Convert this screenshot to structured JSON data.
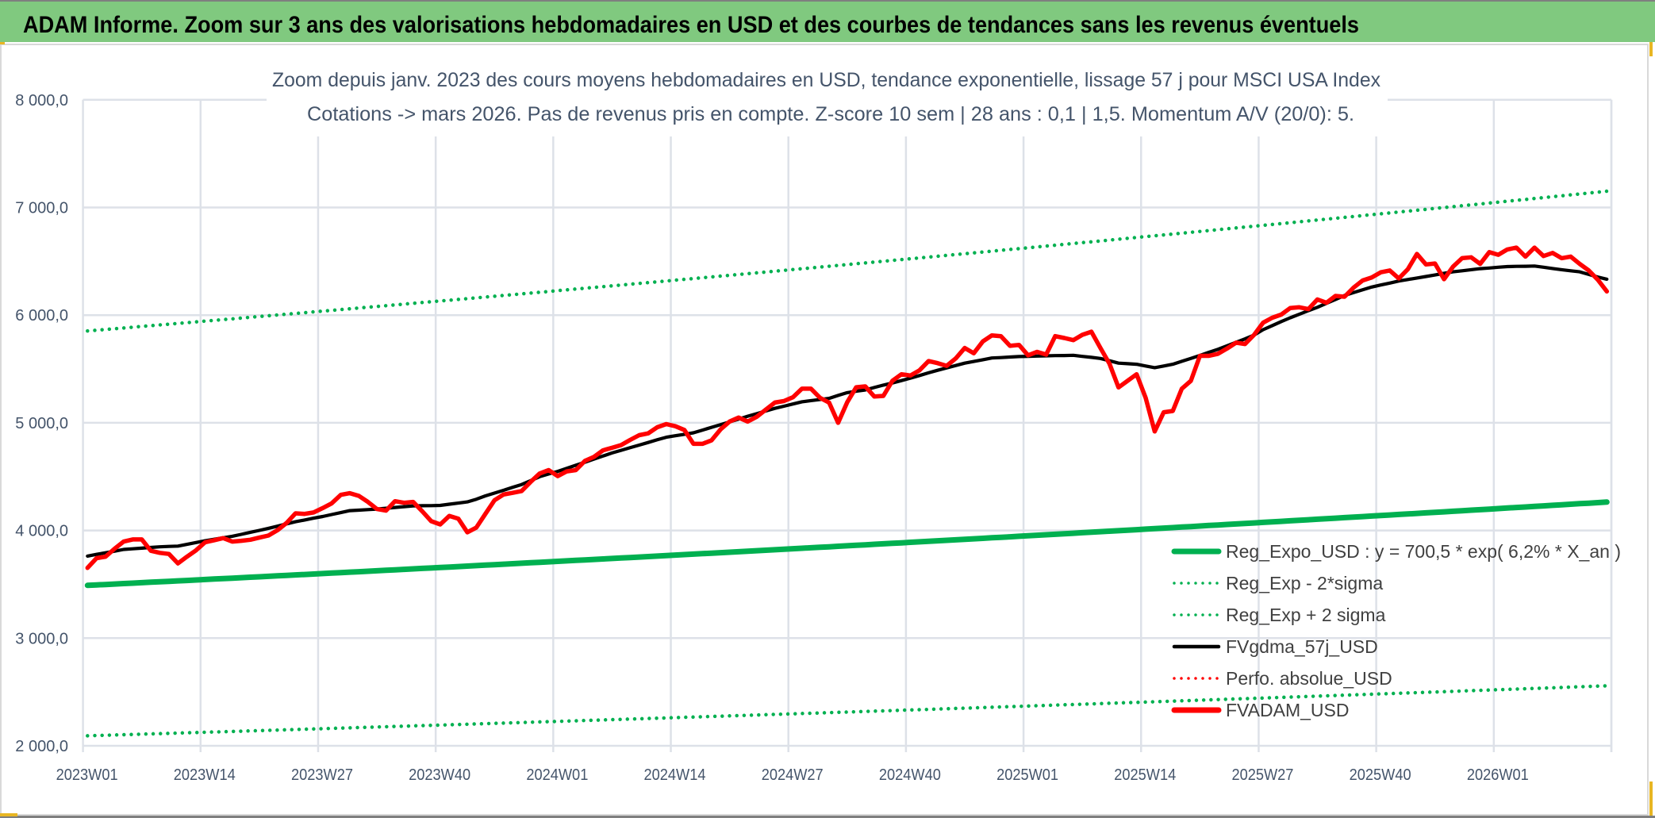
{
  "header": {
    "title": "ADAM Informe. Zoom sur 3 ans des valorisations hebdomadaires en USD et des courbes de tendances sans les revenus éventuels",
    "bar_color": "#80c97f"
  },
  "chart_data": {
    "type": "line",
    "title_line1": "Zoom depuis janv. 2023 des cours moyens hebdomadaires en USD, tendance exponentielle, lissage 57 j pour MSCI USA Index",
    "title_line2": "Cotations -> mars 2026. Pas de revenus pris en compte. Z-score 10 sem | 28 ans : 0,1 | 1,5. Momentum A/V (20/0): 5.",
    "xlabel": "",
    "ylabel": "",
    "ylim": [
      2000,
      8000
    ],
    "y_ticks": [
      "2 000,0",
      "3 000,0",
      "4 000,0",
      "5 000,0",
      "6 000,0",
      "7 000,0",
      "8 000,0"
    ],
    "y_tick_values": [
      2000,
      3000,
      4000,
      5000,
      6000,
      7000,
      8000
    ],
    "x_first_week": "2023W01",
    "x_count": 169,
    "x_tick_every": 13,
    "x_ticks": [
      "2023W01",
      "2023W14",
      "2023W27",
      "2023W40",
      "2024W01",
      "2024W14",
      "2024W27",
      "2024W40",
      "2025W01",
      "2025W14",
      "2025W27",
      "2025W40",
      "2026W01"
    ],
    "grid": true,
    "legend_position": "bottom-right",
    "legend": [
      {
        "label": "Reg_Expo_USD : y = 700,5 * exp( 6,2% *  X_an )",
        "color": "#00b050",
        "style": "solid-thick"
      },
      {
        "label": "Reg_Exp - 2*sigma",
        "color": "#00b050",
        "style": "dotted"
      },
      {
        "label": "Reg_Exp + 2 sigma",
        "color": "#00b050",
        "style": "dotted"
      },
      {
        "label": "FVgdma_57j_USD",
        "color": "#000000",
        "style": "solid"
      },
      {
        "label": "Perfo. absolue_USD",
        "color": "#ff0000",
        "style": "dotted"
      },
      {
        "label": "FVADAM_USD",
        "color": "#ff0000",
        "style": "solid-thick"
      }
    ],
    "trend_series": [
      {
        "name": "Reg_Expo_USD",
        "start": 3490,
        "annual_rate": 0.062,
        "color": "#00b050",
        "style": "solid-thick"
      },
      {
        "name": "Reg_Exp - 2*sigma",
        "start": 2093,
        "annual_rate": 0.062,
        "color": "#00b050",
        "style": "dotted"
      },
      {
        "name": "Reg_Exp + 2 sigma",
        "start": 5853,
        "annual_rate": 0.062,
        "color": "#00b050",
        "style": "dotted"
      }
    ],
    "series": [
      {
        "name": "FVgdma_57j_USD",
        "color": "#000000",
        "values": [
          3762,
          3778,
          3793,
          3808,
          3824,
          3830,
          3836,
          3842,
          3848,
          3852,
          3855,
          3871,
          3888,
          3904,
          3918,
          3932,
          3946,
          3964,
          3983,
          4001,
          4020,
          4040,
          4061,
          4081,
          4097,
          4114,
          4130,
          4148,
          4166,
          4184,
          4189,
          4194,
          4199,
          4206,
          4214,
          4221,
          4228,
          4230,
          4231,
          4233,
          4244,
          4254,
          4265,
          4290,
          4321,
          4347,
          4373,
          4400,
          4427,
          4463,
          4500,
          4525,
          4549,
          4577,
          4606,
          4634,
          4663,
          4691,
          4720,
          4744,
          4769,
          4793,
          4817,
          4842,
          4866,
          4880,
          4893,
          4907,
          4932,
          4958,
          4983,
          5009,
          5035,
          5061,
          5085,
          5110,
          5134,
          5154,
          5175,
          5195,
          5206,
          5216,
          5227,
          5254,
          5280,
          5293,
          5305,
          5328,
          5350,
          5370,
          5392,
          5415,
          5439,
          5464,
          5488,
          5510,
          5532,
          5554,
          5570,
          5586,
          5602,
          5606,
          5611,
          5615,
          5617,
          5620,
          5622,
          5624,
          5625,
          5627,
          5617,
          5608,
          5598,
          5576,
          5554,
          5549,
          5544,
          5528,
          5512,
          5528,
          5544,
          5571,
          5598,
          5626,
          5655,
          5683,
          5715,
          5748,
          5780,
          5815,
          5865,
          5903,
          5940,
          5976,
          6008,
          6041,
          6073,
          6110,
          6146,
          6183,
          6209,
          6235,
          6261,
          6280,
          6298,
          6317,
          6331,
          6345,
          6359,
          6373,
          6388,
          6402,
          6412,
          6422,
          6432,
          6438,
          6445,
          6451,
          6453,
          6454,
          6456,
          6445,
          6433,
          6422,
          6412,
          6402,
          6378,
          6354,
          6334
        ]
      },
      {
        "name": "FVADAM_USD",
        "color": "#ff0000",
        "values": [
          3652,
          3743,
          3757,
          3831,
          3897,
          3917,
          3917,
          3811,
          3792,
          3782,
          3694,
          3757,
          3816,
          3890,
          3909,
          3929,
          3897,
          3904,
          3914,
          3934,
          3953,
          4002,
          4069,
          4159,
          4154,
          4167,
          4208,
          4252,
          4331,
          4346,
          4321,
          4265,
          4199,
          4184,
          4272,
          4257,
          4265,
          4179,
          4086,
          4056,
          4135,
          4110,
          3983,
          4027,
          4154,
          4280,
          4334,
          4349,
          4366,
          4451,
          4529,
          4561,
          4505,
          4549,
          4561,
          4646,
          4683,
          4744,
          4768,
          4793,
          4841,
          4885,
          4902,
          4959,
          4988,
          4968,
          4934,
          4805,
          4805,
          4837,
          4939,
          5012,
          5049,
          5012,
          5056,
          5122,
          5188,
          5202,
          5237,
          5317,
          5317,
          5232,
          5188,
          5000,
          5190,
          5330,
          5338,
          5244,
          5250,
          5390,
          5451,
          5439,
          5488,
          5573,
          5554,
          5529,
          5598,
          5695,
          5646,
          5756,
          5812,
          5805,
          5715,
          5724,
          5627,
          5659,
          5634,
          5805,
          5788,
          5768,
          5817,
          5846,
          5695,
          5549,
          5329,
          5390,
          5451,
          5232,
          4920,
          5098,
          5110,
          5317,
          5390,
          5622,
          5622,
          5641,
          5690,
          5744,
          5732,
          5817,
          5930,
          5976,
          6005,
          6066,
          6073,
          6056,
          6146,
          6115,
          6178,
          6171,
          6256,
          6322,
          6349,
          6398,
          6415,
          6341,
          6427,
          6568,
          6471,
          6480,
          6334,
          6451,
          6529,
          6537,
          6476,
          6585,
          6561,
          6610,
          6627,
          6544,
          6627,
          6549,
          6578,
          6529,
          6544,
          6476,
          6415,
          6329,
          6220
        ]
      }
    ]
  }
}
